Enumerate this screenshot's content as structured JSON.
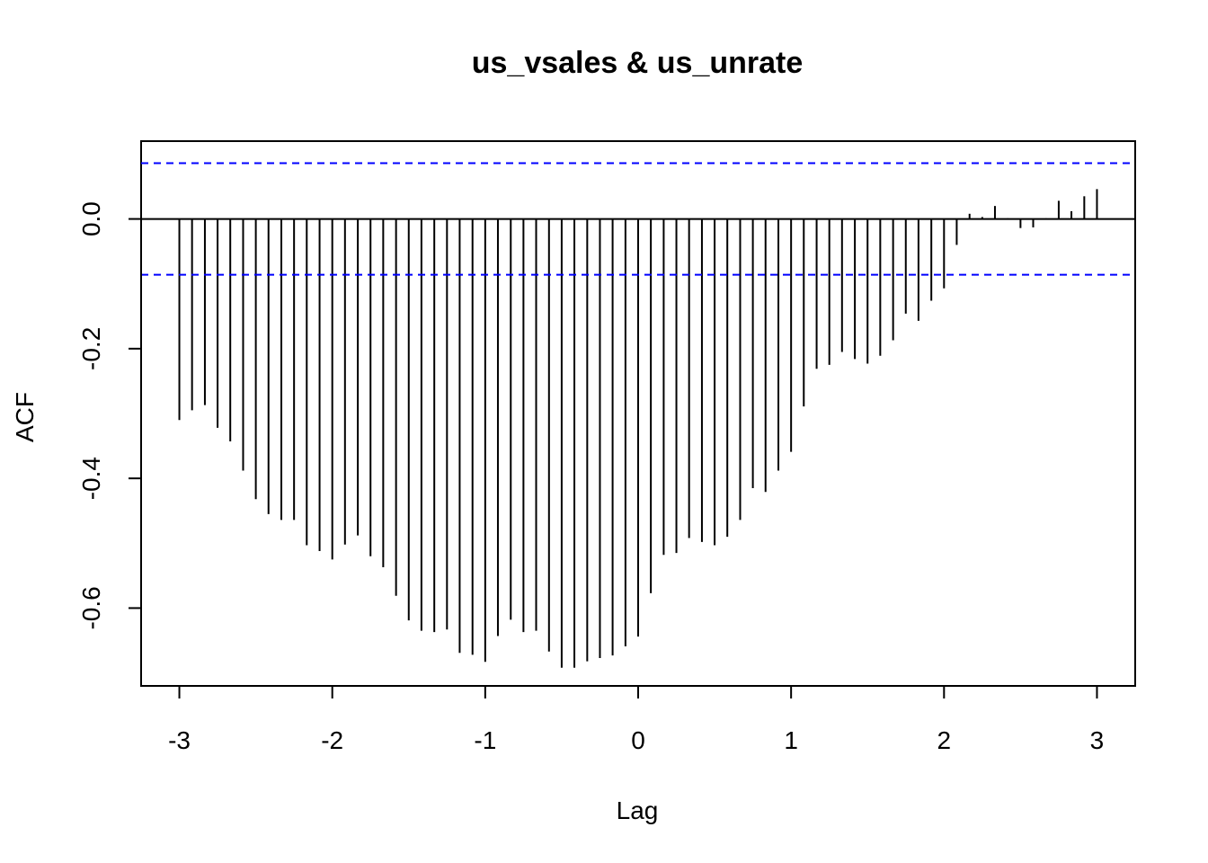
{
  "chart_data": {
    "type": "bar",
    "title": "us_vsales & us_unrate",
    "xlabel": "Lag",
    "ylabel": "ACF",
    "xlim": [
      -3.25,
      3.25
    ],
    "ylim": [
      -0.72,
      0.12
    ],
    "x_ticks": [
      "-3",
      "-2",
      "-1",
      "0",
      "1",
      "2",
      "3"
    ],
    "y_ticks": [
      "0.0",
      "-0.2",
      "-0.4",
      "-0.6"
    ],
    "confidence_bound": 0.086,
    "lags": [
      -3.0,
      -2.917,
      -2.833,
      -2.75,
      -2.667,
      -2.583,
      -2.5,
      -2.417,
      -2.333,
      -2.25,
      -2.167,
      -2.083,
      -2.0,
      -1.917,
      -1.833,
      -1.75,
      -1.667,
      -1.583,
      -1.5,
      -1.417,
      -1.333,
      -1.25,
      -1.167,
      -1.083,
      -1.0,
      -0.917,
      -0.833,
      -0.75,
      -0.667,
      -0.583,
      -0.5,
      -0.417,
      -0.333,
      -0.25,
      -0.167,
      -0.083,
      0.0,
      0.083,
      0.167,
      0.25,
      0.333,
      0.417,
      0.5,
      0.583,
      0.667,
      0.75,
      0.833,
      0.917,
      1.0,
      1.083,
      1.167,
      1.25,
      1.333,
      1.417,
      1.5,
      1.583,
      1.667,
      1.75,
      1.833,
      1.917,
      2.0,
      2.083,
      2.167,
      2.25,
      2.333,
      2.417,
      2.5,
      2.583,
      2.667,
      2.75,
      2.833,
      2.917,
      3.0
    ],
    "values": [
      -0.31,
      -0.295,
      -0.287,
      -0.322,
      -0.343,
      -0.388,
      -0.432,
      -0.455,
      -0.464,
      -0.464,
      -0.503,
      -0.512,
      -0.525,
      -0.502,
      -0.488,
      -0.52,
      -0.537,
      -0.581,
      -0.619,
      -0.635,
      -0.637,
      -0.633,
      -0.669,
      -0.672,
      -0.683,
      -0.643,
      -0.618,
      -0.637,
      -0.635,
      -0.667,
      -0.692,
      -0.692,
      -0.682,
      -0.677,
      -0.673,
      -0.659,
      -0.644,
      -0.577,
      -0.518,
      -0.515,
      -0.492,
      -0.498,
      -0.503,
      -0.49,
      -0.464,
      -0.415,
      -0.421,
      -0.388,
      -0.359,
      -0.289,
      -0.231,
      -0.225,
      -0.205,
      -0.216,
      -0.223,
      -0.211,
      -0.187,
      -0.146,
      -0.157,
      -0.126,
      -0.107,
      -0.04,
      0.008,
      0.003,
      0.02,
      0.001,
      -0.014,
      -0.013,
      0.001,
      0.028,
      0.012,
      0.035,
      0.046
    ],
    "grid": false,
    "legend": "none",
    "colors": {
      "bars": "#000000",
      "bounds": "#0000ff",
      "axes": "#000000"
    }
  }
}
